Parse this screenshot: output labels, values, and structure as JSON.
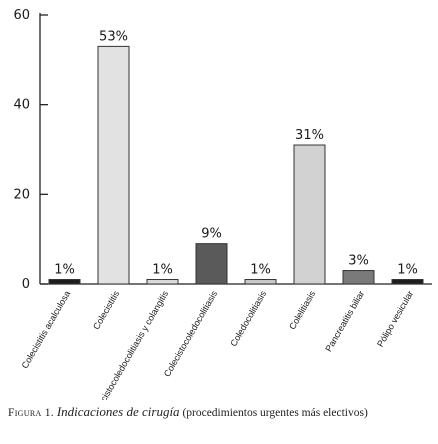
{
  "chart_data": {
    "type": "bar",
    "categories": [
      "Colecistitis acalculosa",
      "Colecistitis",
      "Colecistocoledocolitiasis y colangitis",
      "Colecistocoledocolitiasis",
      "Coledocolitiasis",
      "Colelitiasis",
      "Pancreatitis biliar",
      "Pólipo vesicular"
    ],
    "values": [
      1,
      53,
      1,
      9,
      1,
      31,
      3,
      1
    ],
    "data_labels": [
      "1%",
      "53%",
      "1%",
      "9%",
      "1%",
      "31%",
      "3%",
      "1%"
    ],
    "bar_colors": [
      "#1e1e1e",
      "#e2e2e2",
      "#dcdcdc",
      "#5a5a5a",
      "#c8c8c8",
      "#d2d2d2",
      "#7a7a7a",
      "#1e1e1e"
    ],
    "ylim": [
      0,
      60
    ],
    "yticks": [
      0,
      20,
      40,
      60
    ],
    "grid": false,
    "title": "",
    "xlabel": "",
    "ylabel": ""
  },
  "caption": {
    "prefix": "Figura 1.",
    "title": "Indicaciones de cirugía",
    "rest": "(procedimientos urgentes más electivos)"
  }
}
